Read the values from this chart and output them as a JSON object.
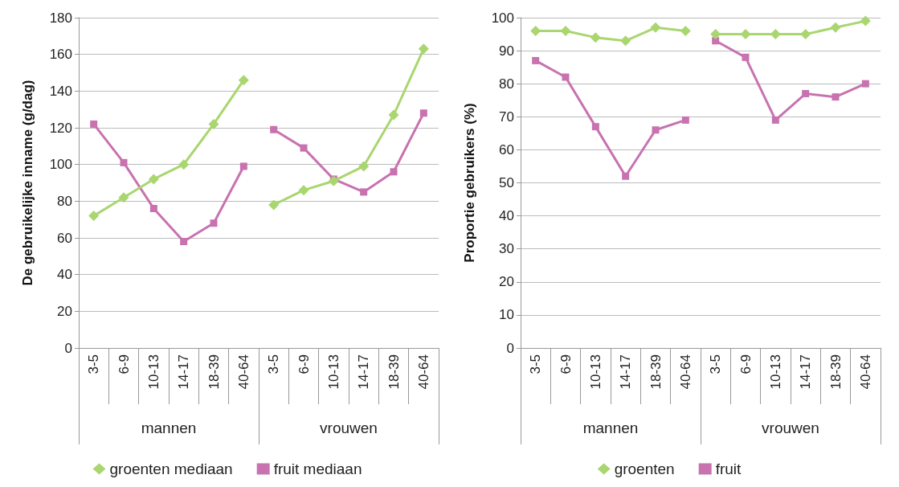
{
  "chart_data": [
    {
      "type": "line",
      "ylabel": "De gebruikelijke inname (g/dag)",
      "categories": [
        "3-5",
        "6-9",
        "10-13",
        "14-17",
        "18-39",
        "40-64",
        "3-5",
        "6-9",
        "10-13",
        "14-17",
        "18-39",
        "40-64"
      ],
      "annotations": [
        "mannen",
        "vrouwen"
      ],
      "ylim": [
        0,
        180
      ],
      "yticks": [
        0,
        20,
        40,
        60,
        80,
        100,
        120,
        140,
        160,
        180
      ],
      "grid": "y",
      "legend": "bottom",
      "series": [
        {
          "name": "groenten mediaan",
          "color": "#a9d66f",
          "marker": "diamond",
          "values": [
            72,
            82,
            92,
            100,
            122,
            146,
            78,
            86,
            91,
            99,
            127,
            163
          ]
        },
        {
          "name": "fruit mediaan",
          "color": "#c872b0",
          "marker": "square",
          "values": [
            122,
            101,
            76,
            58,
            68,
            99,
            119,
            109,
            92,
            85,
            96,
            128
          ]
        }
      ]
    },
    {
      "type": "line",
      "ylabel": "Proportie gebruikers (%)",
      "categories": [
        "3-5",
        "6-9",
        "10-13",
        "14-17",
        "18-39",
        "40-64",
        "3-5",
        "6-9",
        "10-13",
        "14-17",
        "18-39",
        "40-64"
      ],
      "annotations": [
        "mannen",
        "vrouwen"
      ],
      "ylim": [
        0,
        100
      ],
      "yticks": [
        0,
        10,
        20,
        30,
        40,
        50,
        60,
        70,
        80,
        90,
        100
      ],
      "grid": "y",
      "legend": "bottom",
      "series": [
        {
          "name": "groenten",
          "color": "#a9d66f",
          "marker": "diamond",
          "values": [
            96,
            96,
            94,
            93,
            97,
            96,
            95,
            95,
            95,
            95,
            97,
            99
          ]
        },
        {
          "name": "fruit",
          "color": "#c872b0",
          "marker": "square",
          "values": [
            87,
            82,
            67,
            52,
            66,
            69,
            93,
            88,
            69,
            77,
            76,
            80
          ]
        }
      ]
    }
  ]
}
